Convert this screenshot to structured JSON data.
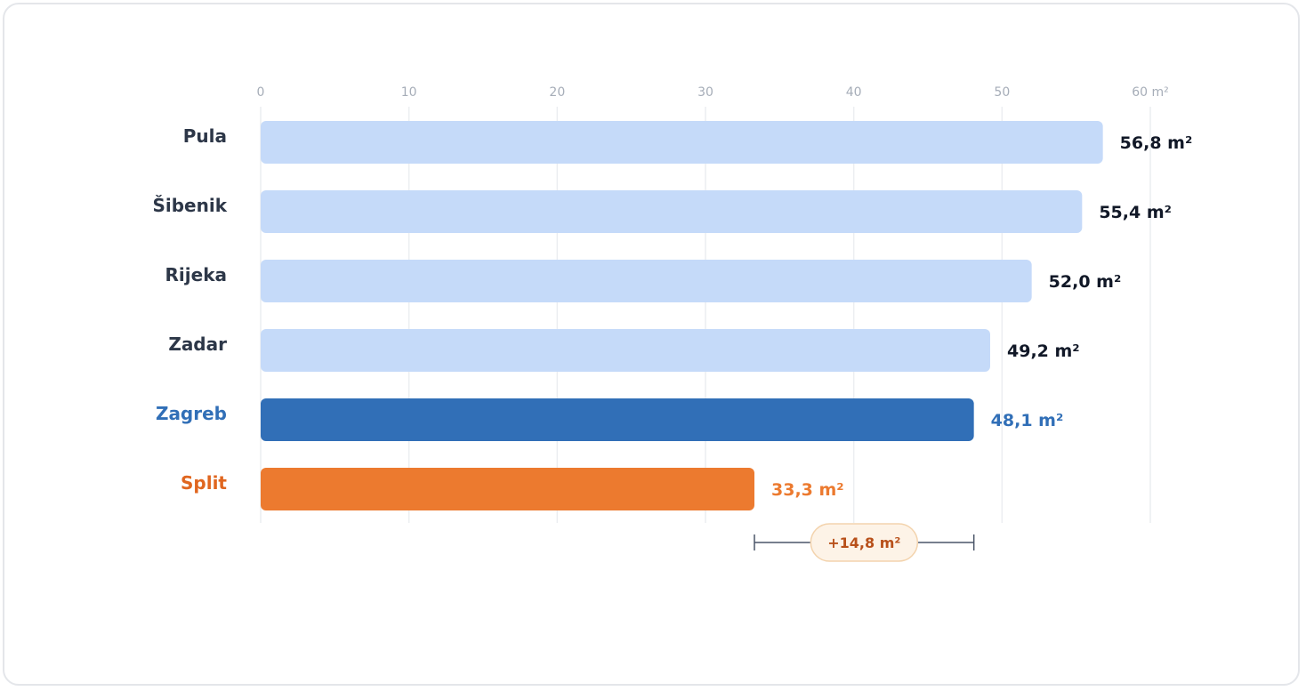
{
  "chart_data": {
    "type": "bar",
    "orientation": "horizontal",
    "unit": "m²",
    "xlim": [
      0,
      60
    ],
    "ticks": [
      {
        "value": 0,
        "label": "0"
      },
      {
        "value": 10,
        "label": "10"
      },
      {
        "value": 20,
        "label": "20"
      },
      {
        "value": 30,
        "label": "30"
      },
      {
        "value": 40,
        "label": "40"
      },
      {
        "value": 50,
        "label": "50"
      },
      {
        "value": 60,
        "label": "60 m²"
      }
    ],
    "grid": true,
    "categories": [
      "Pula",
      "Šibenik",
      "Rijeka",
      "Zadar",
      "Zagreb",
      "Split"
    ],
    "values": [
      56.8,
      55.4,
      52.0,
      49.2,
      48.1,
      33.3
    ],
    "value_labels": [
      "56,8 m²",
      "55,4 m²",
      "52,0 m²",
      "49,2 m²",
      "48,1 m²",
      "33,3 m²"
    ],
    "colors": {
      "default_bar": "#c5daf9",
      "default_label": "#2d3748",
      "default_value": "#111827",
      "highlight_zagreb": "#316fb7",
      "highlight_split": "#ec7a2f",
      "split_label": "#e0661f",
      "grid": "#eceef1",
      "difference_text": "#b8501a",
      "difference_fill": "#fdf3e7",
      "difference_border": "#f3d3ad",
      "bracket": "#4a5568"
    },
    "highlights": {
      "Zagreb": "highlight_zagreb",
      "Split": "highlight_split"
    },
    "annotation": {
      "type": "difference-bracket",
      "from": 33.3,
      "to": 48.1,
      "label": "+14,8 m²"
    }
  }
}
